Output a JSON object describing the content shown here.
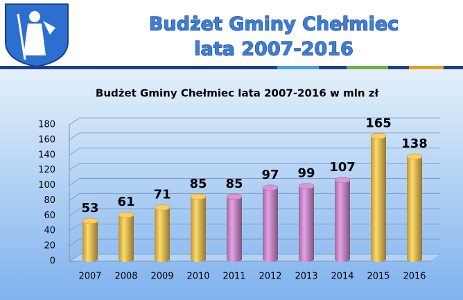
{
  "slide": {
    "title_lines": [
      "Budżet Gminy Chełmiec",
      "lata 2007-2016"
    ]
  },
  "chart_data": {
    "type": "bar",
    "title": "Budżet Gminy Chełmiec lata 2007-2016 w mln zł",
    "categories": [
      "2007",
      "2008",
      "2009",
      "2010",
      "2011",
      "2012",
      "2013",
      "2014",
      "2015",
      "2016"
    ],
    "values": [
      53,
      61,
      71,
      85,
      85,
      97,
      99,
      107,
      165,
      138
    ],
    "colors": [
      "#f2c45a",
      "#f2c45a",
      "#f2c45a",
      "#f2c45a",
      "#cf8fcf",
      "#cf8fcf",
      "#cf8fcf",
      "#cf8fcf",
      "#f2c45a",
      "#f2c45a"
    ],
    "ylim": [
      0,
      180
    ],
    "yticks": [
      0,
      20,
      40,
      60,
      80,
      100,
      120,
      140,
      160,
      180
    ],
    "grid": true
  }
}
